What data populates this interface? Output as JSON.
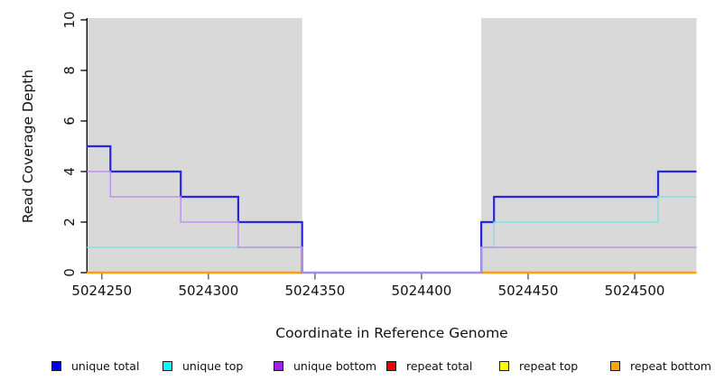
{
  "figure": {
    "background": "#ffffff",
    "shaded_region_color": "#d9d9d9",
    "axis_color": "#000000",
    "tick_color": "#4a4a4a",
    "text_color": "#111111"
  },
  "chart_data": {
    "type": "line",
    "subtype": "step-coverage",
    "title": "",
    "xlabel": "Coordinate in Reference Genome",
    "ylabel": "Read Coverage Depth",
    "xlim": [
      5024243,
      5024529
    ],
    "ylim": [
      0,
      10
    ],
    "x_ticks": [
      5024250,
      5024300,
      5024350,
      5024400,
      5024450,
      5024500
    ],
    "y_ticks": [
      0,
      2,
      4,
      6,
      8,
      10
    ],
    "grid": false,
    "legend_position": "bottom",
    "shaded_regions": [
      {
        "name": "left-coverage-region",
        "x_start": 5024243,
        "x_end": 5024344
      },
      {
        "name": "right-coverage-region",
        "x_start": 5024428,
        "x_end": 5024529
      }
    ],
    "series": [
      {
        "name": "repeat total",
        "line_color": "#dd0000",
        "swatch_color": "#ee0000",
        "line_width": 1.4,
        "segments": [
          {
            "points": [
              [
                5024243,
                0
              ]
            ],
            "end": 5024344
          },
          {
            "points": [
              [
                5024428,
                0
              ]
            ],
            "end": 5024529
          }
        ]
      },
      {
        "name": "repeat top",
        "line_color": "#ffff00",
        "swatch_color": "#ffff00",
        "line_width": 1.4,
        "segments": [
          {
            "points": [
              [
                5024243,
                0
              ]
            ],
            "end": 5024344
          },
          {
            "points": [
              [
                5024428,
                0
              ]
            ],
            "end": 5024529
          }
        ]
      },
      {
        "name": "repeat bottom",
        "line_color": "#ff9d0c",
        "swatch_color": "#ffa500",
        "line_width": 2.4,
        "segments": [
          {
            "points": [
              [
                5024243,
                0
              ]
            ],
            "end": 5024344
          },
          {
            "points": [
              [
                5024428,
                0
              ]
            ],
            "end": 5024529
          }
        ]
      },
      {
        "name": "unique total",
        "line_color": "#2726dd",
        "swatch_color": "#0000ee",
        "line_width": 2.2,
        "segments": [
          {
            "points": [
              [
                5024243,
                5
              ],
              [
                5024254,
                4
              ],
              [
                5024287,
                3
              ],
              [
                5024314,
                2
              ],
              [
                5024344,
                0
              ],
              [
                5024428,
                2
              ],
              [
                5024434,
                3
              ],
              [
                5024511,
                4
              ]
            ],
            "end": 5024529
          }
        ]
      },
      {
        "name": "unique top",
        "line_color": "#7de2dd",
        "swatch_color": "#00ffff",
        "line_width": 1.5,
        "segments": [
          {
            "points": [
              [
                5024243,
                1
              ],
              [
                5024344,
                0
              ],
              [
                5024428,
                1
              ],
              [
                5024434,
                2
              ],
              [
                5024511,
                3
              ]
            ],
            "end": 5024529
          }
        ]
      },
      {
        "name": "unique bottom",
        "line_color": "#bd92e6",
        "swatch_color": "#a020f0",
        "line_width": 1.5,
        "segments": [
          {
            "points": [
              [
                5024243,
                4
              ],
              [
                5024254,
                3
              ],
              [
                5024287,
                2
              ],
              [
                5024314,
                1
              ],
              [
                5024344,
                0
              ],
              [
                5024428,
                1
              ]
            ],
            "end": 5024529
          }
        ]
      }
    ],
    "legend": [
      {
        "label": "unique total",
        "color": "#0000ee"
      },
      {
        "label": "unique top",
        "color": "#00ffff"
      },
      {
        "label": "unique bottom",
        "color": "#a020f0"
      },
      {
        "label": "repeat total",
        "color": "#ee0000"
      },
      {
        "label": "repeat top",
        "color": "#ffff00"
      },
      {
        "label": "repeat bottom",
        "color": "#ffa500"
      }
    ]
  }
}
